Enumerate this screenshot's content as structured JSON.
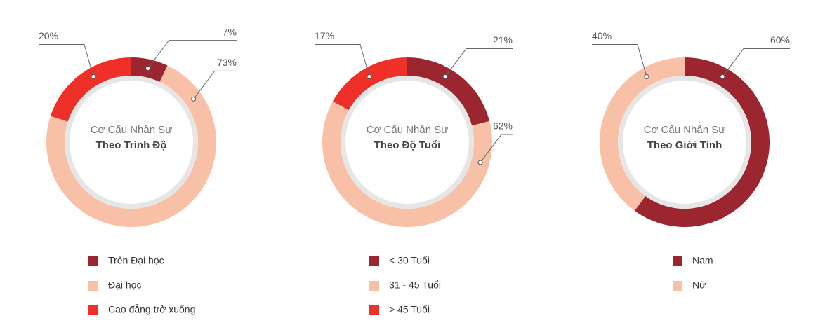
{
  "chart_data": [
    {
      "type": "pie",
      "title": "Cơ Cấu Nhân Sự",
      "subtitle": "Theo Trình Độ",
      "categories": [
        "Trên Đại học",
        "Đại học",
        "Cao đẳng trở xuống"
      ],
      "values": [
        7,
        73,
        20
      ],
      "value_labels": [
        "7%",
        "73%",
        "20%"
      ],
      "colors": [
        "#9b2630",
        "#f9c0a8",
        "#ee3029"
      ]
    },
    {
      "type": "pie",
      "title": "Cơ Cấu Nhân Sự",
      "subtitle": "Theo Độ Tuổi",
      "categories": [
        "< 30 Tuổi",
        "31 - 45 Tuổi",
        "> 45 Tuổi"
      ],
      "values": [
        21,
        62,
        17
      ],
      "value_labels": [
        "21%",
        "62%",
        "17%"
      ],
      "colors": [
        "#9b2630",
        "#f9c0a8",
        "#ee3029"
      ]
    },
    {
      "type": "pie",
      "title": "Cơ Cấu Nhân Sự",
      "subtitle": "Theo Giới Tính",
      "categories": [
        "Nam",
        "Nữ"
      ],
      "values": [
        60,
        40
      ],
      "value_labels": [
        "60%",
        "40%"
      ],
      "colors": [
        "#9b2630",
        "#f9c0a8"
      ]
    }
  ]
}
